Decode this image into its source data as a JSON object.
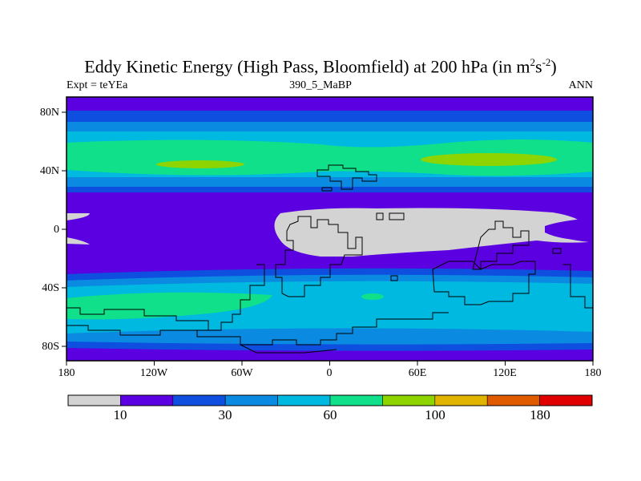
{
  "title": {
    "main": "Eddy Kinetic Energy (High Pass, Bloomfield) at 200 hPa (in m",
    "sup1": "2",
    "mid": "s",
    "sup2": "-2",
    "end": ")"
  },
  "subtitle_left": "Expt = teYEa",
  "subtitle_center": "390_5_MaBP",
  "subtitle_right": "ANN",
  "map": {
    "lon_range": [
      -180,
      180
    ],
    "lat_range": [
      -90,
      90
    ],
    "x_ticks": [
      "180",
      "120W",
      "60W",
      "0",
      "60E",
      "120E",
      "180"
    ],
    "y_ticks": [
      "80N",
      "40N",
      "0",
      "40S",
      "80S"
    ]
  },
  "colorbar": {
    "colors": [
      "#d3d3d3",
      "#5b00e0",
      "#0f4fe0",
      "#0a8ae0",
      "#00b9e0",
      "#10e08a",
      "#8ed400",
      "#e0b400",
      "#e05a00",
      "#e00000"
    ],
    "labels": [
      "10",
      "30",
      "60",
      "100",
      "180"
    ]
  }
}
